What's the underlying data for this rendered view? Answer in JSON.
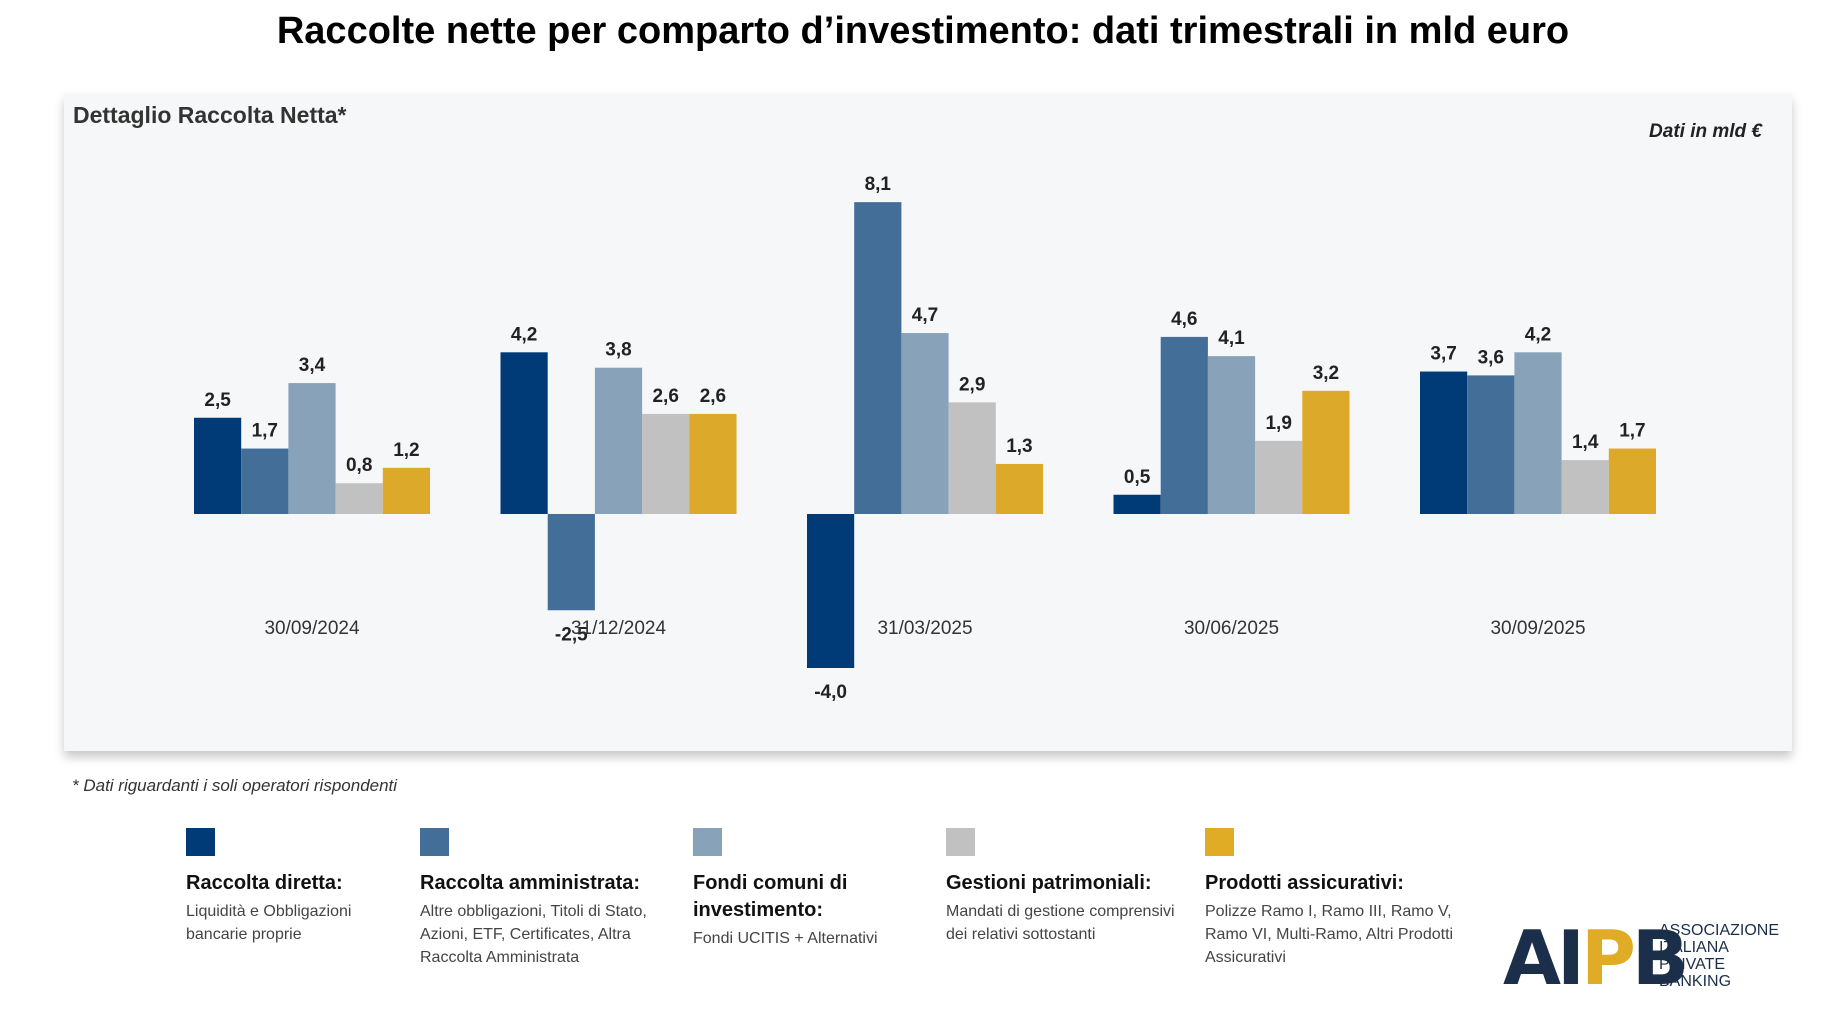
{
  "title": "Raccolte nette per comparto d’investimento: dati trimestrali in mld euro",
  "panel_title": "Dettaglio Raccolta Netta*",
  "unit_note": "Dati in mld €",
  "footnote": "* Dati riguardanti i soli operatori rispondenti",
  "chart_data": {
    "type": "bar",
    "categories": [
      "30/09/2024",
      "31/12/2024",
      "31/03/2025",
      "30/06/2025",
      "30/09/2025"
    ],
    "series": [
      {
        "name": "Raccolta diretta:",
        "color": "#003b78",
        "values": [
          2.5,
          4.2,
          -4.0,
          0.5,
          3.7
        ]
      },
      {
        "name": "Raccolta amministrata:",
        "color": "#436e98",
        "values": [
          1.7,
          -2.5,
          8.1,
          4.6,
          3.6
        ]
      },
      {
        "name": "Fondi comuni di investimento:",
        "color": "#87a2b9",
        "values": [
          3.4,
          3.8,
          4.7,
          4.1,
          4.2
        ]
      },
      {
        "name": "Gestioni patrimoniali:",
        "color": "#c1c1c1",
        "values": [
          0.8,
          2.6,
          2.9,
          1.9,
          1.4
        ]
      },
      {
        "name": "Prodotti assicurativi:",
        "color": "#dda92b",
        "values": [
          1.2,
          2.6,
          1.3,
          3.2,
          1.7
        ]
      }
    ],
    "value_labels": [
      [
        "2,5",
        "4,2",
        "-4,0",
        "0,5",
        "3,7"
      ],
      [
        "1,7",
        "-2,5",
        "8,1",
        "4,6",
        "3,6"
      ],
      [
        "3,4",
        "3,8",
        "4,7",
        "4,1",
        "4,2"
      ],
      [
        "0,8",
        "2,6",
        "2,9",
        "1,9",
        "1,4"
      ],
      [
        "1,2",
        "2,6",
        "1,3",
        "3,2",
        "1,7"
      ]
    ],
    "ylim": [
      -4.0,
      8.1
    ],
    "grid": false
  },
  "legend": [
    {
      "title": "Raccolta diretta:",
      "desc": "Liquidità e Obbligazioni bancarie proprie",
      "color": "#003b78"
    },
    {
      "title": "Raccolta amministrata:",
      "desc": "Altre obbligazioni, Titoli di Stato, Azioni, ETF, Certificates, Altra Raccolta Amministrata",
      "color": "#436e98"
    },
    {
      "title": "Fondi comuni di investimento:",
      "desc": "Fondi UCITIS + Alternativi",
      "color": "#87a2b9"
    },
    {
      "title": "Gestioni patrimoniali:",
      "desc": "Mandati di gestione comprensivi dei relativi sottostanti",
      "color": "#c1c1c1"
    },
    {
      "title": "Prodotti assicurativi:",
      "desc": "Polizze Ramo I, Ramo III, Ramo V, Ramo VI, Multi-Ramo, Altri Prodotti Assicurativi",
      "color": "#e0ac26"
    }
  ],
  "logo": {
    "mark": "AIPB",
    "lines": [
      "ASSOCIAZIONE",
      "ITALIANA",
      "PRIVATE",
      "BANKING"
    ]
  }
}
